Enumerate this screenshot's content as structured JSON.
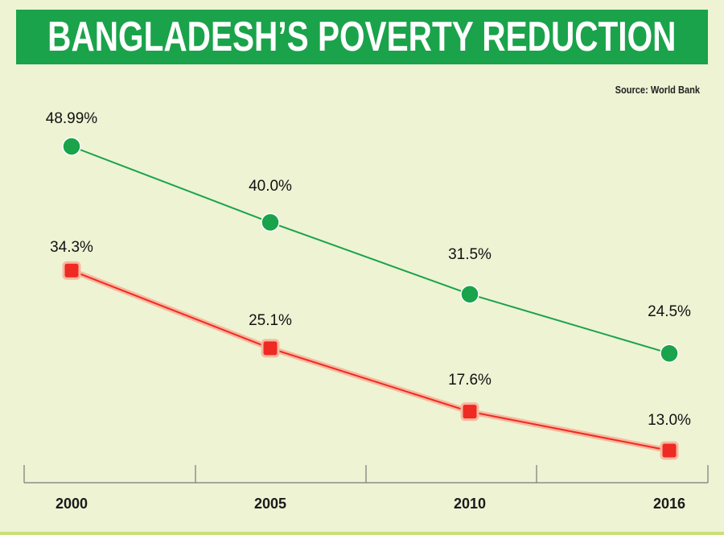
{
  "title": "BANGLADESH’S POVERTY REDUCTION",
  "source": "Source: World Bank",
  "colors": {
    "banner": "#1aa34a",
    "background": "#edf3d3",
    "green_series": "#1aa34a",
    "red_series": "#ee2a22"
  },
  "chart_data": {
    "type": "line",
    "categories": [
      "2000",
      "2005",
      "2010",
      "2016"
    ],
    "series": [
      {
        "values": [
          48.99,
          40.0,
          31.5,
          24.5
        ],
        "labels": [
          "48.99%",
          "40.0%",
          "31.5%",
          "24.5%"
        ],
        "color": "#1aa34a",
        "marker": "circle"
      },
      {
        "values": [
          34.3,
          25.1,
          17.6,
          13.0
        ],
        "labels": [
          "34.3%",
          "25.1%",
          "17.6%",
          "13.0%"
        ],
        "color": "#ee2a22",
        "marker": "square"
      }
    ],
    "ylim": [
      8,
      54
    ],
    "grid": false,
    "legend": "none"
  }
}
